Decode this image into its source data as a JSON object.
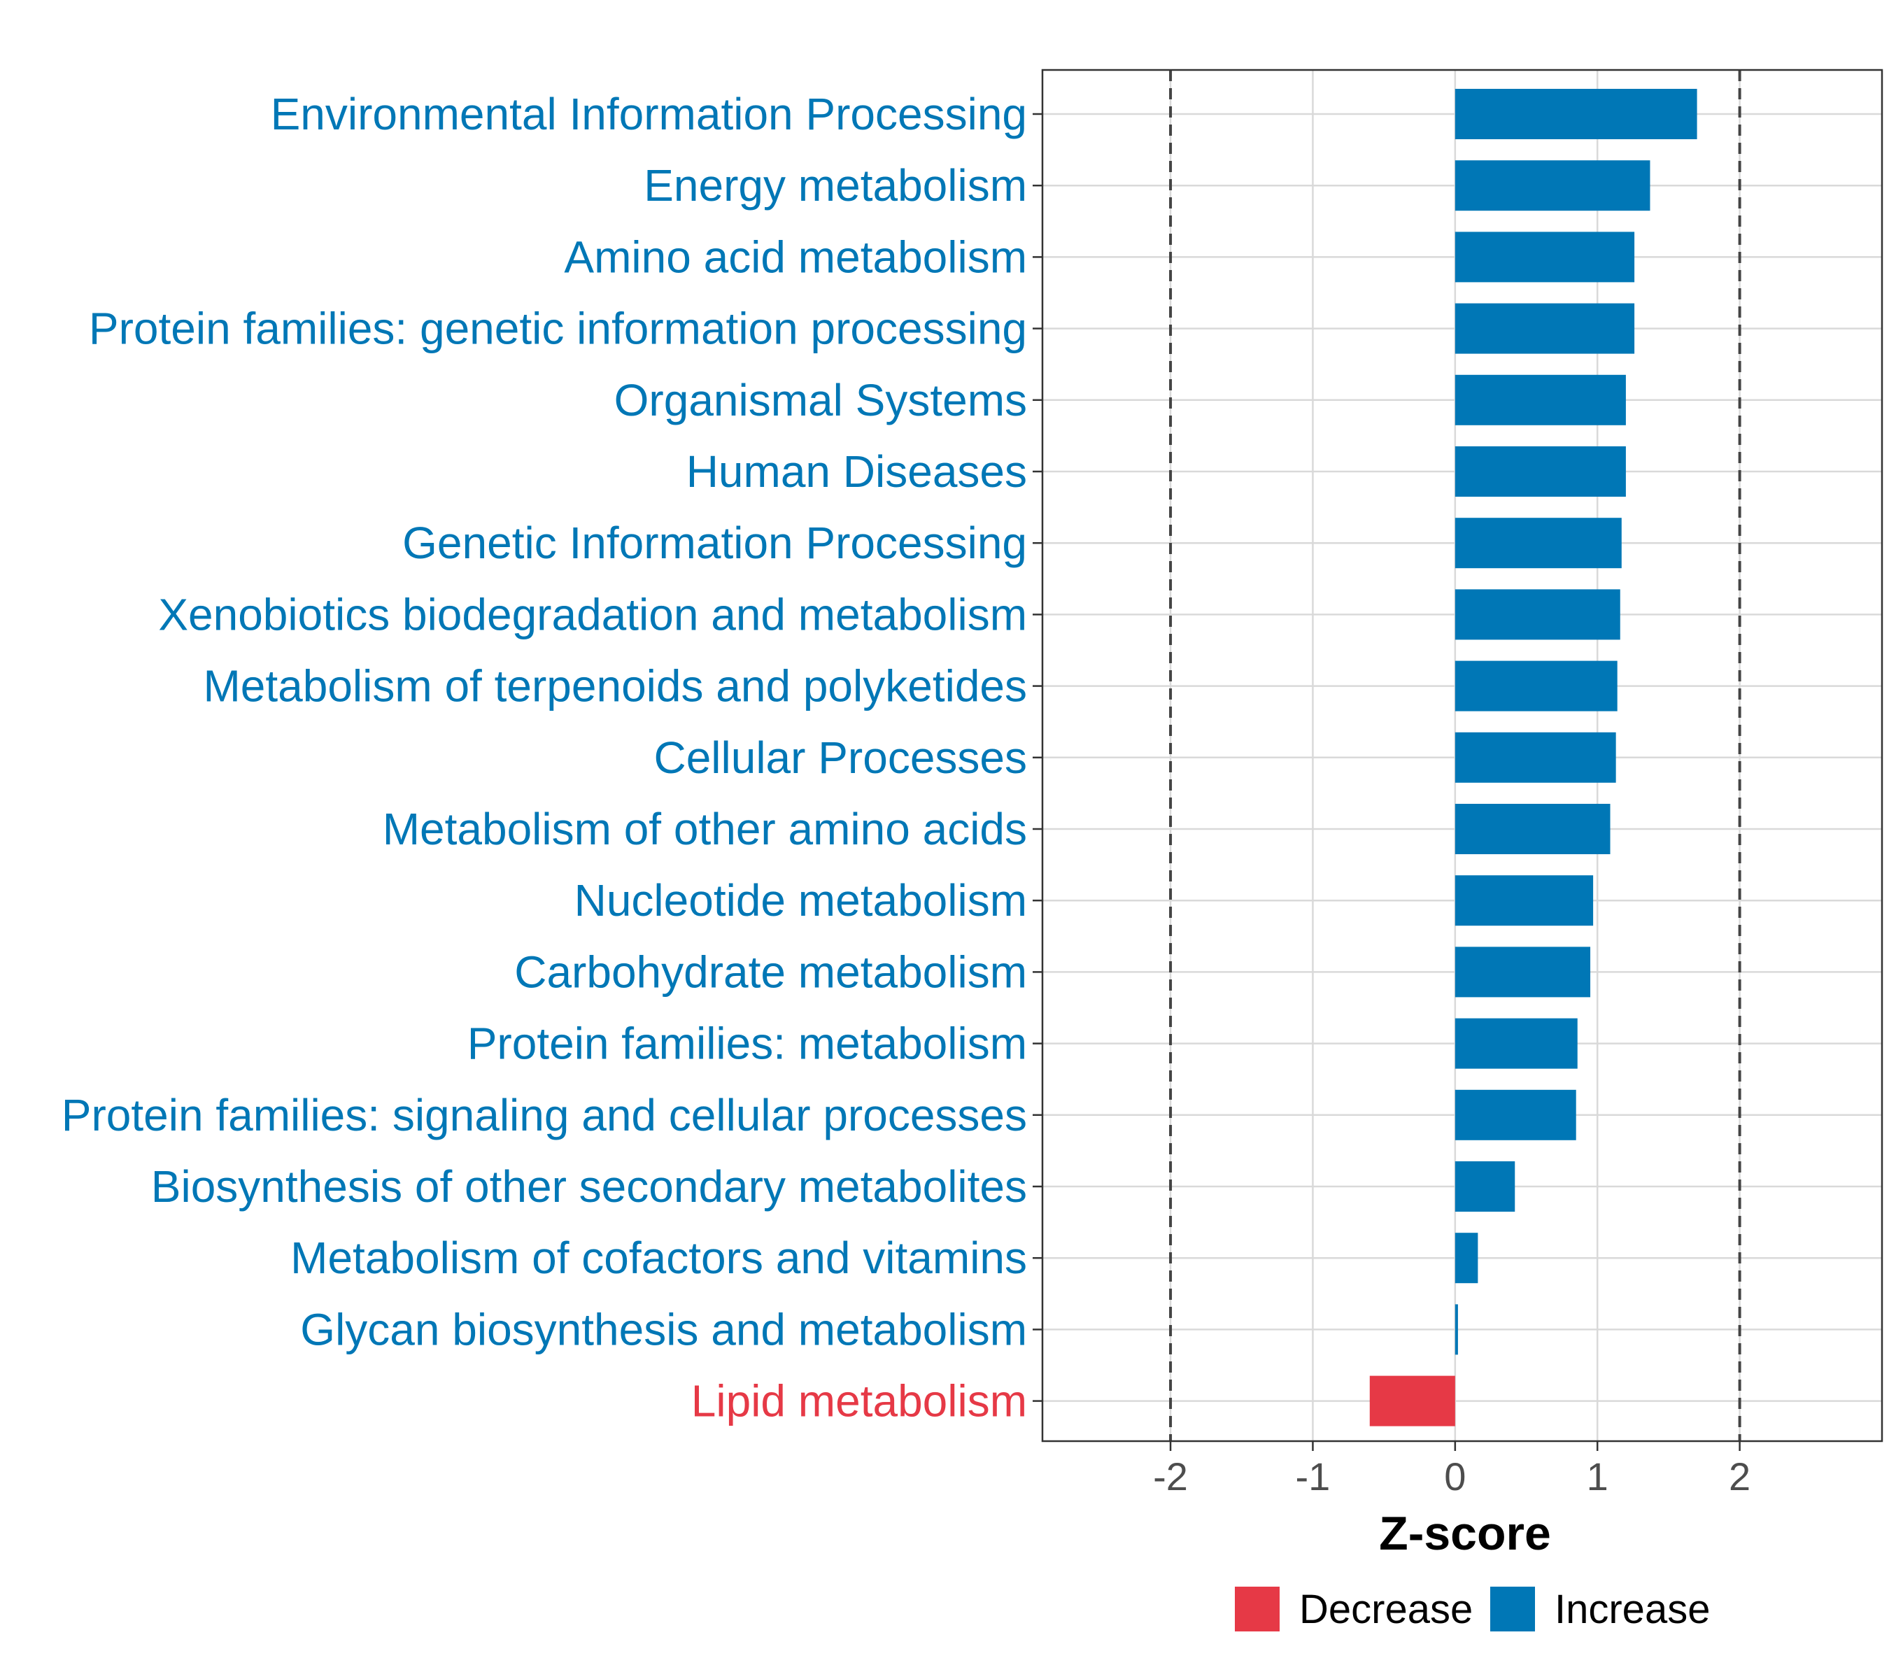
{
  "chart_data": {
    "type": "bar",
    "orientation": "horizontal",
    "xlabel": "Z-score",
    "xlim": [
      -2.9,
      3.0
    ],
    "xticks": [
      -2,
      -1,
      0,
      1,
      2
    ],
    "xtick_labels": [
      "-2",
      "-1",
      "0",
      "1",
      "2"
    ],
    "reference_lines": [
      -2,
      2
    ],
    "grid": true,
    "categories": [
      "Environmental Information Processing",
      "Energy metabolism",
      "Amino acid metabolism",
      "Protein families: genetic information processing",
      "Organismal Systems",
      "Human Diseases",
      "Genetic Information Processing",
      "Xenobiotics biodegradation and metabolism",
      "Metabolism of terpenoids and polyketides",
      "Cellular Processes",
      "Metabolism of other amino acids",
      "Nucleotide metabolism",
      "Carbohydrate metabolism",
      "Protein families: metabolism",
      "Protein families: signaling and cellular processes",
      "Biosynthesis of other secondary metabolites",
      "Metabolism of cofactors and vitamins",
      "Glycan biosynthesis and metabolism",
      "Lipid metabolism"
    ],
    "values": [
      1.7,
      1.37,
      1.26,
      1.26,
      1.2,
      1.2,
      1.17,
      1.16,
      1.14,
      1.13,
      1.09,
      0.97,
      0.95,
      0.86,
      0.85,
      0.42,
      0.16,
      0.02,
      -0.6
    ],
    "groups": [
      "Increase",
      "Increase",
      "Increase",
      "Increase",
      "Increase",
      "Increase",
      "Increase",
      "Increase",
      "Increase",
      "Increase",
      "Increase",
      "Increase",
      "Increase",
      "Increase",
      "Increase",
      "Increase",
      "Increase",
      "Increase",
      "Decrease"
    ],
    "legend": {
      "placement": "bottom",
      "entries": [
        {
          "label": "Decrease",
          "color": "#E63946"
        },
        {
          "label": "Increase",
          "color": "#0077B6"
        }
      ]
    }
  },
  "colors": {
    "increase": "#0077B6",
    "decrease": "#E63946",
    "grid": "#d9d9d9",
    "reference_line": "#444444"
  }
}
